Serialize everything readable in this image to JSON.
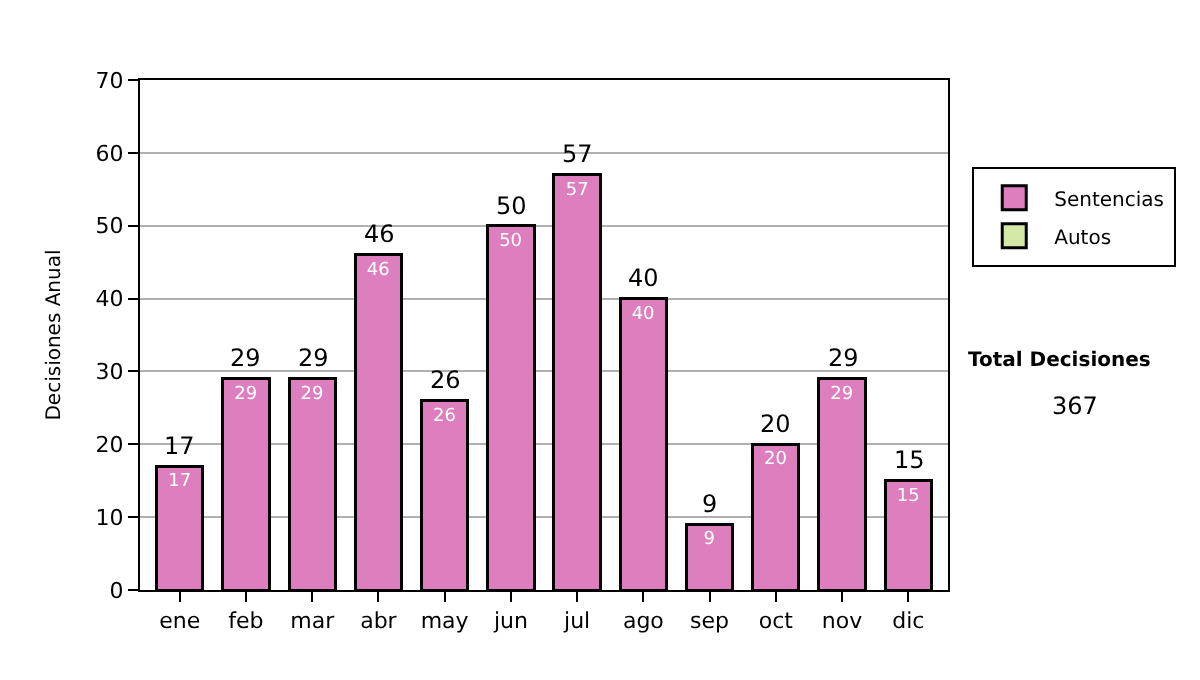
{
  "chart_data": {
    "type": "bar",
    "ylabel": "Decisiones Anual",
    "stacked": true,
    "categories": [
      "ene",
      "feb",
      "mar",
      "abr",
      "may",
      "jun",
      "jul",
      "ago",
      "sep",
      "oct",
      "nov",
      "dic"
    ],
    "series": [
      {
        "name": "Sentencias",
        "color": "#dd7fbf",
        "values": [
          17,
          29,
          29,
          46,
          26,
          50,
          57,
          40,
          9,
          20,
          29,
          15
        ],
        "value_labels": [
          "17",
          "29",
          "29",
          "46",
          "26",
          "50",
          "57",
          "40",
          "9",
          "20",
          "29",
          "15"
        ]
      },
      {
        "name": "Autos",
        "color": "#d4e8a8",
        "values": [
          null,
          null,
          null,
          null,
          null,
          null,
          null,
          null,
          null,
          null,
          null,
          null
        ]
      }
    ],
    "totals": [
      "17",
      "29",
      "29",
      "46",
      "26",
      "50",
      "57",
      "40",
      "9",
      "20",
      "29",
      "15"
    ],
    "ylim": [
      0,
      70
    ],
    "yticks": [
      0,
      10,
      20,
      30,
      40,
      50,
      60,
      70
    ],
    "grid": "y",
    "legend": "right",
    "annotations": [
      "Total Decisiones",
      "367"
    ]
  }
}
